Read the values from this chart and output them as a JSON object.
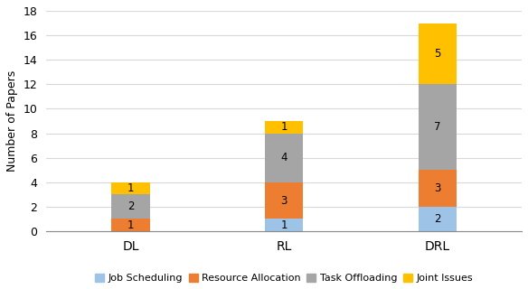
{
  "categories": [
    "DL",
    "RL",
    "DRL"
  ],
  "series": {
    "Job Scheduling": [
      0,
      1,
      2
    ],
    "Resource Allocation": [
      1,
      3,
      3
    ],
    "Task Offloading": [
      2,
      4,
      7
    ],
    "Joint Issues": [
      1,
      1,
      5
    ]
  },
  "colors": {
    "Job Scheduling": "#9dc3e6",
    "Resource Allocation": "#ed7d31",
    "Task Offloading": "#a5a5a5",
    "Joint Issues": "#ffc000"
  },
  "ylabel": "Number of Papers",
  "ylim": [
    0,
    18
  ],
  "yticks": [
    0,
    2,
    4,
    6,
    8,
    10,
    12,
    14,
    16,
    18
  ],
  "bar_width": 0.25,
  "figsize": [
    5.84,
    3.2
  ],
  "dpi": 100
}
